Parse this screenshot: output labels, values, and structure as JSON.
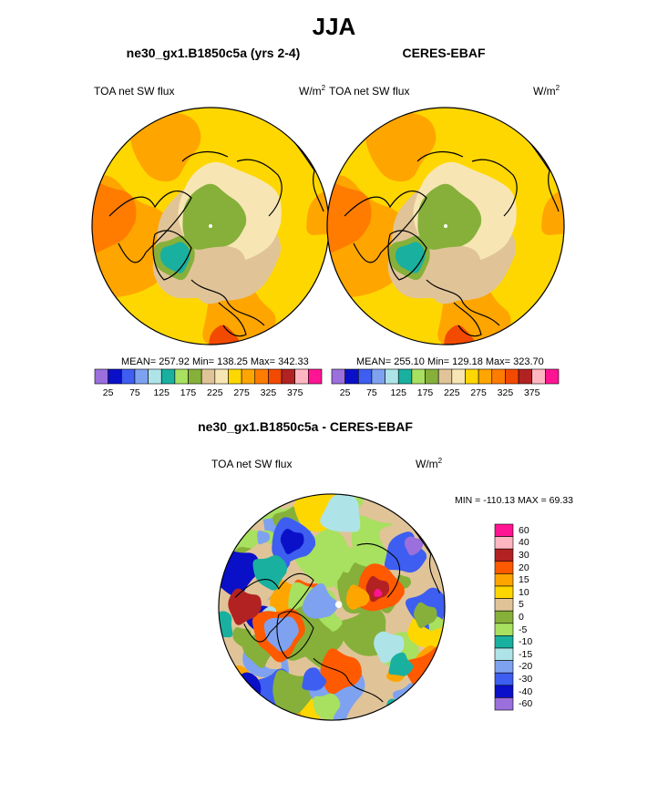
{
  "page": {
    "title": "JJA"
  },
  "colors": {
    "coast": "#000000",
    "background": "#ffffff"
  },
  "panels": [
    {
      "id": "model",
      "title": "ne30_gx1.B1850c5a (yrs 2-4)",
      "variable": "TOA net SW flux",
      "units_base": "W/m",
      "units_exp": "2",
      "stats": "MEAN= 257.92  Min= 138.25  Max= 342.33"
    },
    {
      "id": "obs",
      "title": "CERES-EBAF",
      "variable": "TOA net SW flux",
      "units_base": "W/m",
      "units_exp": "2",
      "stats": "MEAN= 255.10  Min= 129.18  Max= 323.70"
    }
  ],
  "difference": {
    "title": "ne30_gx1.B1850c5a - CERES-EBAF",
    "variable": "TOA net SW flux",
    "units_base": "W/m",
    "units_exp": "2",
    "minmax": "MIN = -110.13 MAX =  69.33"
  },
  "chart_data": [
    {
      "type": "heatmap",
      "projection": "north-polar-stereographic",
      "title": "ne30_gx1.B1850c5a (yrs 2-4)",
      "field": "TOA net SW flux",
      "units": "W/m2",
      "mean": 257.92,
      "min": 138.25,
      "max": 342.33,
      "colorbar": {
        "orientation": "horizontal",
        "levels": [
          25,
          50,
          75,
          100,
          125,
          150,
          175,
          200,
          225,
          250,
          275,
          300,
          325,
          350,
          375
        ],
        "tick_labels": [
          "25",
          "75",
          "125",
          "175",
          "225",
          "275",
          "325",
          "375"
        ],
        "colors": [
          "#9b6fdc",
          "#0a10c8",
          "#3d5ef0",
          "#7ea2f0",
          "#aee4e8",
          "#19b0a0",
          "#a8e060",
          "#86b03a",
          "#e0c498",
          "#f7e6b4",
          "#ffd700",
          "#ffa500",
          "#ff7c00",
          "#f24a00",
          "#b22222",
          "#ffb6c1",
          "#ff1493"
        ]
      }
    },
    {
      "type": "heatmap",
      "projection": "north-polar-stereographic",
      "title": "CERES-EBAF",
      "field": "TOA net SW flux",
      "units": "W/m2",
      "mean": 255.1,
      "min": 129.18,
      "max": 323.7,
      "colorbar": {
        "orientation": "horizontal",
        "levels": [
          25,
          50,
          75,
          100,
          125,
          150,
          175,
          200,
          225,
          250,
          275,
          300,
          325,
          350,
          375
        ],
        "tick_labels": [
          "25",
          "75",
          "125",
          "175",
          "225",
          "275",
          "325",
          "375"
        ],
        "colors": [
          "#9b6fdc",
          "#0a10c8",
          "#3d5ef0",
          "#7ea2f0",
          "#aee4e8",
          "#19b0a0",
          "#a8e060",
          "#86b03a",
          "#e0c498",
          "#f7e6b4",
          "#ffd700",
          "#ffa500",
          "#ff7c00",
          "#f24a00",
          "#b22222",
          "#ffb6c1",
          "#ff1493"
        ]
      }
    },
    {
      "type": "heatmap",
      "projection": "north-polar-stereographic",
      "title": "ne30_gx1.B1850c5a - CERES-EBAF",
      "field": "TOA net SW flux",
      "units": "W/m2",
      "min": -110.13,
      "max": 69.33,
      "colorbar": {
        "orientation": "vertical",
        "levels": [
          60,
          40,
          30,
          20,
          15,
          10,
          5,
          0,
          -5,
          -10,
          -15,
          -20,
          -30,
          -40,
          -60
        ],
        "tick_labels": [
          "60",
          "40",
          "30",
          "20",
          "15",
          "10",
          "5",
          "0",
          "-5",
          "-10",
          "-15",
          "-20",
          "-30",
          "-40",
          "-60"
        ],
        "colors": [
          "#ff1493",
          "#ffb6c1",
          "#b22222",
          "#ff5a00",
          "#ffa500",
          "#ffd700",
          "#e0c498",
          "#86b03a",
          "#a8e060",
          "#19b0a0",
          "#aee4e8",
          "#7ea2f0",
          "#3d5ef0",
          "#0a10c8",
          "#9b6fdc"
        ]
      }
    }
  ]
}
